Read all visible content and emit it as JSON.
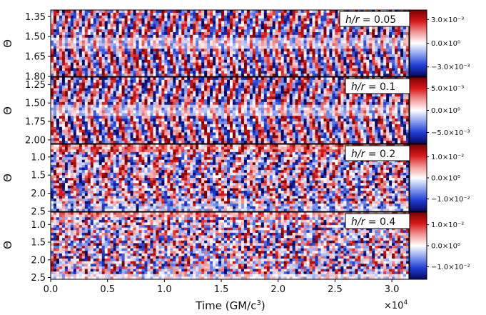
{
  "chart_data": {
    "type": "heatmap",
    "xlabel": "Time (GM/c",
    "xlabel_sup": "3",
    "xlabel_close": ")",
    "x_multiplier": "×10",
    "x_multiplier_exp": "4",
    "xlim": [
      0.0,
      3.15
    ],
    "xticks": [
      "0.0",
      "0.5",
      "1.0",
      "1.5",
      "2.0",
      "2.5",
      "3.0"
    ],
    "xtick_values": [
      0.0,
      0.5,
      1.0,
      1.5,
      2.0,
      2.5,
      3.0
    ],
    "colormap": [
      "#08085e",
      "#1f3fd6",
      "#8fa4f0",
      "#ffffff",
      "#f29a9a",
      "#d81818",
      "#7a0000"
    ],
    "panels": [
      {
        "label": "h/r = 0.05",
        "label_parts": [
          "h/r",
          " = 0.05"
        ],
        "ylabel": "Θ",
        "ylim": [
          1.3,
          1.8
        ],
        "yticks": [
          "1.35",
          "1.50",
          "1.65",
          "1.80"
        ],
        "ytick_values": [
          1.35,
          1.5,
          1.65,
          1.8
        ],
        "colorbar_ticks": [
          "3.0×10⁻³",
          "0.0×10⁰",
          "−3.0×10⁻³"
        ],
        "colorbar_tick_values": [
          0.003,
          0.0,
          -0.003
        ],
        "colorbar_range": [
          -0.0042,
          0.0042
        ],
        "pattern": "butterfly"
      },
      {
        "label": "h/r = 0.1",
        "label_parts": [
          "h/r",
          " = 0.1"
        ],
        "ylabel": "Θ",
        "ylim": [
          1.15,
          2.05
        ],
        "yticks": [
          "1.25",
          "1.50",
          "1.75",
          "2.00"
        ],
        "ytick_values": [
          1.25,
          1.5,
          1.75,
          2.0
        ],
        "colorbar_ticks": [
          "5.0×10⁻³",
          "0.0×10⁰",
          "−5.0×10⁻³"
        ],
        "colorbar_tick_values": [
          0.005,
          0.0,
          -0.005
        ],
        "colorbar_range": [
          -0.0075,
          0.0075
        ],
        "pattern": "butterfly"
      },
      {
        "label": "h/r = 0.2",
        "label_parts": [
          "h/r",
          " = 0.2"
        ],
        "ylabel": "Θ",
        "ylim": [
          0.65,
          2.5
        ],
        "yticks": [
          "1.0",
          "1.5",
          "2.0",
          "2.5"
        ],
        "ytick_values": [
          1.0,
          1.5,
          2.0,
          2.5
        ],
        "colorbar_ticks": [
          "1.0×10⁻²",
          "0.0×10⁰",
          "−1.0×10⁻²"
        ],
        "colorbar_tick_values": [
          0.01,
          0.0,
          -0.01
        ],
        "colorbar_range": [
          -0.016,
          0.016
        ],
        "pattern": "mixed"
      },
      {
        "label": "h/r = 0.4",
        "label_parts": [
          "h/r",
          " = 0.4"
        ],
        "ylabel": "Θ",
        "ylim": [
          0.65,
          2.55
        ],
        "yticks": [
          "1.0",
          "1.5",
          "2.0",
          "2.5"
        ],
        "ytick_values": [
          1.0,
          1.5,
          2.0,
          2.5
        ],
        "colorbar_ticks": [
          "1.0×10⁻²",
          "0.0×10⁰",
          "−1.0×10⁻²"
        ],
        "colorbar_tick_values": [
          0.01,
          0.0,
          -0.01
        ],
        "colorbar_range": [
          -0.016,
          0.016
        ],
        "pattern": "turbulent"
      }
    ]
  }
}
